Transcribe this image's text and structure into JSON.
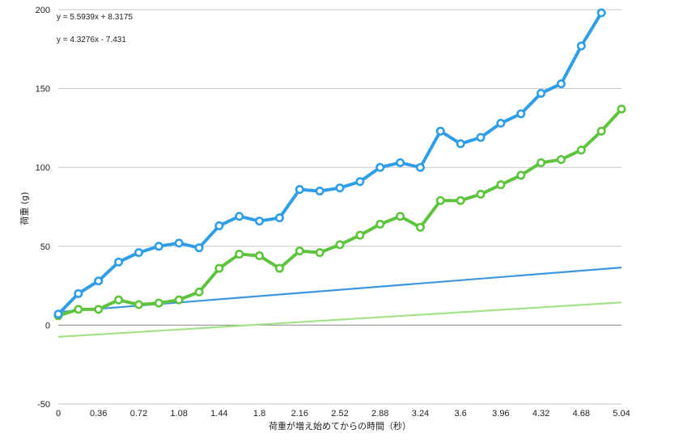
{
  "chart_data": {
    "type": "line",
    "xlabel": "荷重が増え始めてからの時間（秒）",
    "ylabel": "荷重 (g)",
    "ylim": [
      -50,
      200
    ],
    "xlim": [
      0,
      5.04
    ],
    "y_ticks": [
      "200",
      "150",
      "100",
      "50",
      "0",
      "-50"
    ],
    "x_ticks": [
      "0",
      "0.36",
      "0.72",
      "1.08",
      "1.44",
      "1.8",
      "2.16",
      "2.52",
      "2.88",
      "3.24",
      "3.6",
      "3.96",
      "4.32",
      "4.68",
      "5.04"
    ],
    "grid": "horizontal",
    "x": [
      0,
      0.18,
      0.36,
      0.54,
      0.72,
      0.9,
      1.08,
      1.26,
      1.44,
      1.62,
      1.8,
      1.98,
      2.16,
      2.34,
      2.52,
      2.7,
      2.88,
      3.06,
      3.24,
      3.42,
      3.6,
      3.78,
      3.96,
      4.14,
      4.32,
      4.5,
      4.68,
      4.86,
      5.04
    ],
    "series": [
      {
        "color": "#2f9ee6",
        "values": [
          7,
          20,
          28,
          40,
          46,
          50,
          52,
          49,
          63,
          69,
          66,
          68,
          86,
          85,
          87,
          91,
          100,
          103,
          100,
          123,
          115,
          119,
          128,
          134,
          147,
          153,
          177,
          198,
          null
        ],
        "trendline": {
          "equation": "y = 5.5939x + 8.3175",
          "slope": 5.5939,
          "intercept": 8.3175,
          "color": "#3e96dc"
        }
      },
      {
        "color": "#5ec43e",
        "values": [
          6,
          10,
          10,
          16,
          13,
          14,
          16,
          21,
          36,
          45,
          44,
          36,
          47,
          46,
          51,
          57,
          64,
          69,
          62,
          79,
          79,
          83,
          89,
          95,
          103,
          105,
          111,
          123,
          137
        ],
        "trendline": {
          "equation": "y = 4.3276x - 7.431",
          "slope": 4.3276,
          "intercept": -7.431,
          "color": "#a5e08a"
        }
      }
    ]
  }
}
